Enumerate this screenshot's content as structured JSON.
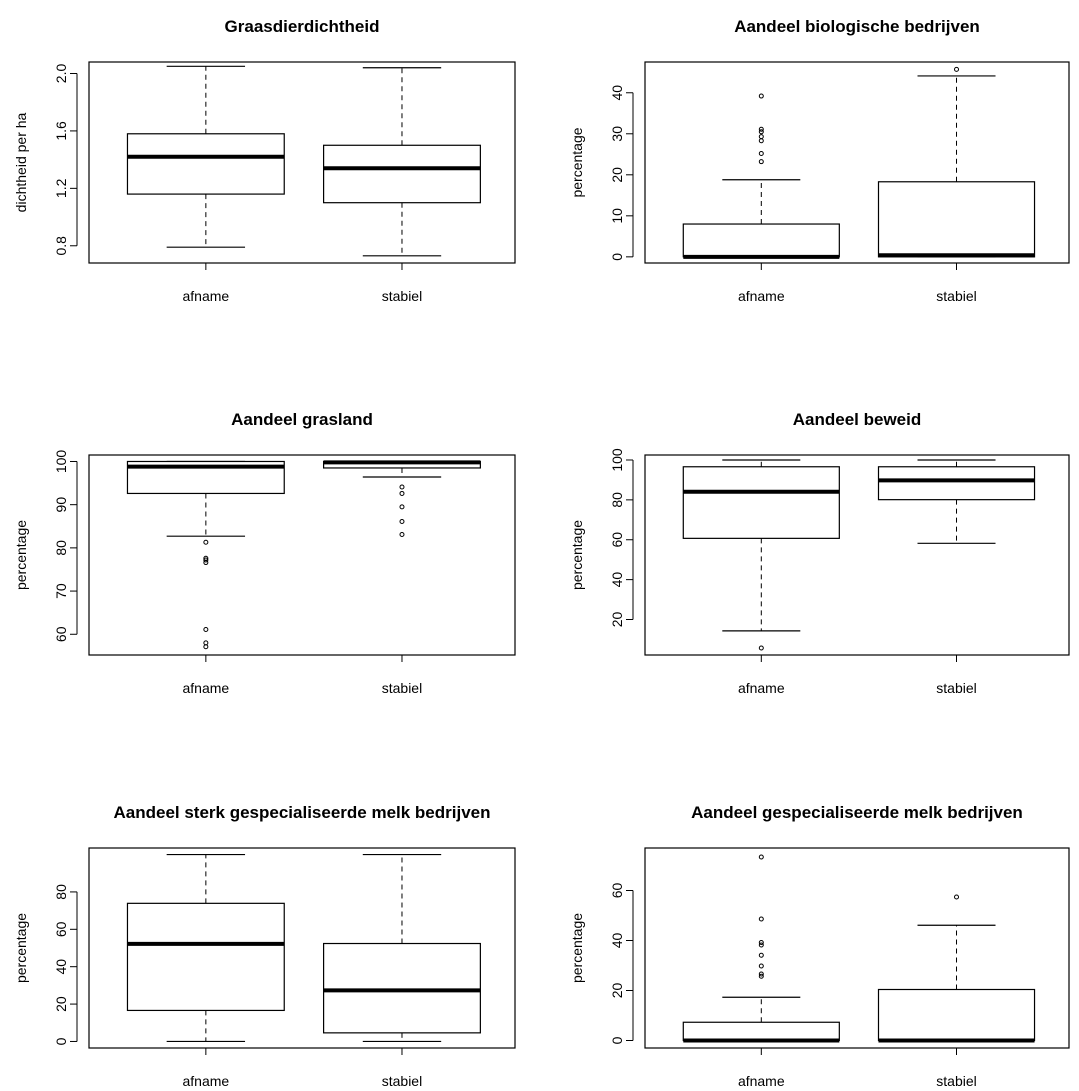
{
  "chart_data": [
    {
      "type": "boxplot",
      "title": "Graasdierdichtheid",
      "ylabel": "dichtheid per ha",
      "categories": [
        "afname",
        "stabiel"
      ],
      "ylim": [
        0.68,
        2.08
      ],
      "yticks": [
        0.8,
        1.2,
        1.6,
        2.0
      ],
      "ytick_labels": [
        "0.8",
        "1.2",
        "1.6",
        "2.0"
      ],
      "boxes": [
        {
          "whisker_low": 0.79,
          "q1": 1.16,
          "median": 1.42,
          "q3": 1.58,
          "whisker_high": 2.05,
          "outliers": []
        },
        {
          "whisker_low": 0.73,
          "q1": 1.1,
          "median": 1.34,
          "q3": 1.5,
          "whisker_high": 2.04,
          "outliers": []
        }
      ]
    },
    {
      "type": "boxplot",
      "title": "Aandeel biologische bedrijven",
      "ylabel": "percentage",
      "categories": [
        "afname",
        "stabiel"
      ],
      "ylim": [
        -1.5,
        47.5
      ],
      "yticks": [
        0,
        10,
        20,
        30,
        40
      ],
      "ytick_labels": [
        "0",
        "10",
        "20",
        "30",
        "40"
      ],
      "boxes": [
        {
          "whisker_low": 0,
          "q1": 0,
          "median": 0,
          "q3": 8,
          "whisker_high": 18.8,
          "outliers": [
            23.2,
            25.2,
            28.3,
            29.3,
            30.5,
            31.1,
            39.2
          ]
        },
        {
          "whisker_low": 0,
          "q1": 0,
          "median": 0.4,
          "q3": 18.3,
          "whisker_high": 44.1,
          "outliers": [
            45.7
          ]
        }
      ]
    },
    {
      "type": "boxplot",
      "title": "Aandeel grasland",
      "ylabel": "percentage",
      "categories": [
        "afname",
        "stabiel"
      ],
      "ylim": [
        55.2,
        101.5
      ],
      "yticks": [
        60,
        70,
        80,
        90,
        100
      ],
      "ytick_labels": [
        "60",
        "70",
        "80",
        "90",
        "100"
      ],
      "boxes": [
        {
          "whisker_low": 82.7,
          "q1": 92.6,
          "median": 98.8,
          "q3": 100,
          "whisker_high": 100,
          "outliers": [
            81.3,
            77.6,
            77.2,
            76.6,
            61.1,
            58.0,
            57.1
          ]
        },
        {
          "whisker_low": 96.4,
          "q1": 98.5,
          "median": 99.8,
          "q3": 100,
          "whisker_high": 100,
          "outliers": [
            94.1,
            92.6,
            89.5,
            86.1,
            83.1
          ]
        }
      ]
    },
    {
      "type": "boxplot",
      "title": "Aandeel beweid",
      "ylabel": "percentage",
      "categories": [
        "afname",
        "stabiel"
      ],
      "ylim": [
        2.2,
        102.5
      ],
      "yticks": [
        20,
        40,
        60,
        80,
        100
      ],
      "ytick_labels": [
        "20",
        "40",
        "60",
        "80",
        "100"
      ],
      "boxes": [
        {
          "whisker_low": 14.3,
          "q1": 60.7,
          "median": 84.1,
          "q3": 96.6,
          "whisker_high": 100,
          "outliers": [
            5.7
          ]
        },
        {
          "whisker_low": 58.2,
          "q1": 80.1,
          "median": 89.8,
          "q3": 96.6,
          "whisker_high": 100,
          "outliers": []
        }
      ]
    },
    {
      "type": "boxplot",
      "title": "Aandeel sterk gespecialiseerde melk bedrijven",
      "ylabel": "percentage",
      "categories": [
        "afname",
        "stabiel"
      ],
      "ylim": [
        -3.5,
        103.5
      ],
      "yticks": [
        0,
        20,
        40,
        60,
        80
      ],
      "ytick_labels": [
        "0",
        "20",
        "40",
        "60",
        "80"
      ],
      "boxes": [
        {
          "whisker_low": 0,
          "q1": 16.6,
          "median": 52.2,
          "q3": 73.9,
          "whisker_high": 100,
          "outliers": []
        },
        {
          "whisker_low": 0,
          "q1": 4.6,
          "median": 27.3,
          "q3": 52.4,
          "whisker_high": 100,
          "outliers": []
        }
      ]
    },
    {
      "type": "boxplot",
      "title": "Aandeel gespecialiseerde melk bedrijven",
      "ylabel": "percentage",
      "categories": [
        "afname",
        "stabiel"
      ],
      "ylim": [
        -3,
        77
      ],
      "yticks": [
        0,
        20,
        40,
        60
      ],
      "ytick_labels": [
        "0",
        "20",
        "40",
        "60"
      ],
      "boxes": [
        {
          "whisker_low": 0,
          "q1": 0,
          "median": 0,
          "q3": 7.3,
          "whisker_high": 17.3,
          "outliers": [
            25.7,
            26.6,
            29.8,
            34.1,
            38.2,
            39.2,
            48.6,
            73.4
          ]
        },
        {
          "whisker_low": 0,
          "q1": 0,
          "median": 0,
          "q3": 20.4,
          "whisker_high": 46.1,
          "outliers": [
            57.4
          ]
        }
      ]
    }
  ]
}
